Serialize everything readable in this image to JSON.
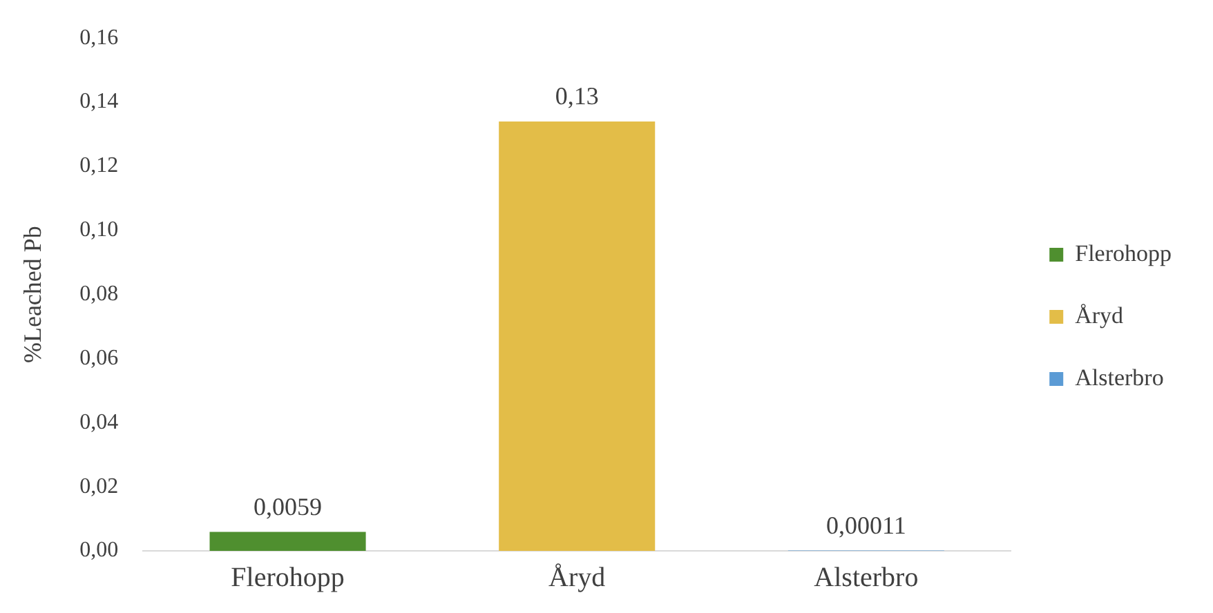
{
  "chart_data": {
    "type": "bar",
    "ylabel": "%Leached Pb",
    "categories": [
      "Flerohopp",
      "Åryd",
      "Alsterbro"
    ],
    "series": [
      {
        "name": "Flerohopp",
        "color": "#4f8f2f",
        "values": [
          0.0059,
          null,
          null
        ],
        "value_labels": [
          "0,0059",
          null,
          null
        ]
      },
      {
        "name": "Åryd",
        "color": "#e3bd48",
        "values": [
          null,
          0.134,
          null
        ],
        "value_labels": [
          null,
          "0,13",
          null
        ]
      },
      {
        "name": "Alsterbro",
        "color": "#5b9bd5",
        "values": [
          null,
          null,
          0.00011
        ],
        "value_labels": [
          null,
          null,
          "0,00011"
        ]
      }
    ],
    "ylim": [
      0,
      0.16
    ],
    "yticks": [
      {
        "value": 0,
        "label": "0,00"
      },
      {
        "value": 0.02,
        "label": "0,02"
      },
      {
        "value": 0.04,
        "label": "0,04"
      },
      {
        "value": 0.06,
        "label": "0,06"
      },
      {
        "value": 0.08,
        "label": "0,08"
      },
      {
        "value": 0.1,
        "label": "0,10"
      },
      {
        "value": 0.12,
        "label": "0,12"
      },
      {
        "value": 0.14,
        "label": "0,14"
      },
      {
        "value": 0.16,
        "label": "0,16"
      }
    ],
    "grid": false,
    "legend": "right"
  }
}
